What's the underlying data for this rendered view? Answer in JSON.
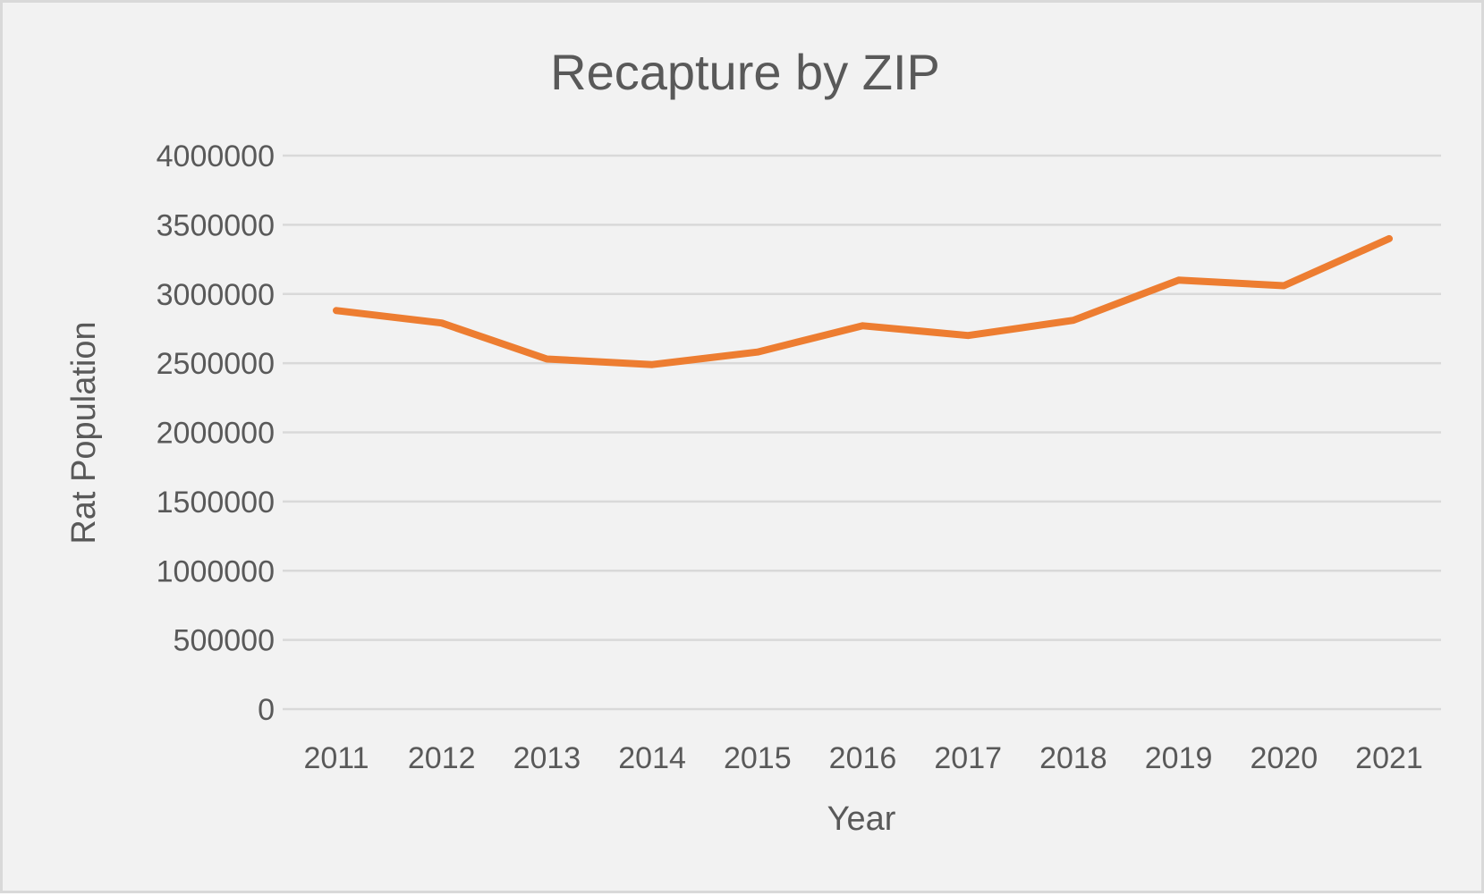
{
  "chart_data": {
    "type": "line",
    "title": "Recapture by ZIP",
    "xlabel": "Year",
    "ylabel": "Rat Population",
    "categories": [
      "2011",
      "2012",
      "2013",
      "2014",
      "2015",
      "2016",
      "2017",
      "2018",
      "2019",
      "2020",
      "2021"
    ],
    "series": [
      {
        "values": [
          2880000,
          2790000,
          2530000,
          2490000,
          2580000,
          2770000,
          2700000,
          2810000,
          3100000,
          3060000,
          3400000
        ],
        "color": "#ed7d31"
      }
    ],
    "ylim": [
      0,
      4000000
    ],
    "yticks": [
      "0",
      "500000",
      "1000000",
      "1500000",
      "2000000",
      "2500000",
      "3000000",
      "3500000",
      "4000000"
    ],
    "grid": true,
    "legend": "none",
    "colors": {
      "background": "#f2f2f2",
      "gridline": "#d9d9d9",
      "text": "#595959"
    }
  }
}
